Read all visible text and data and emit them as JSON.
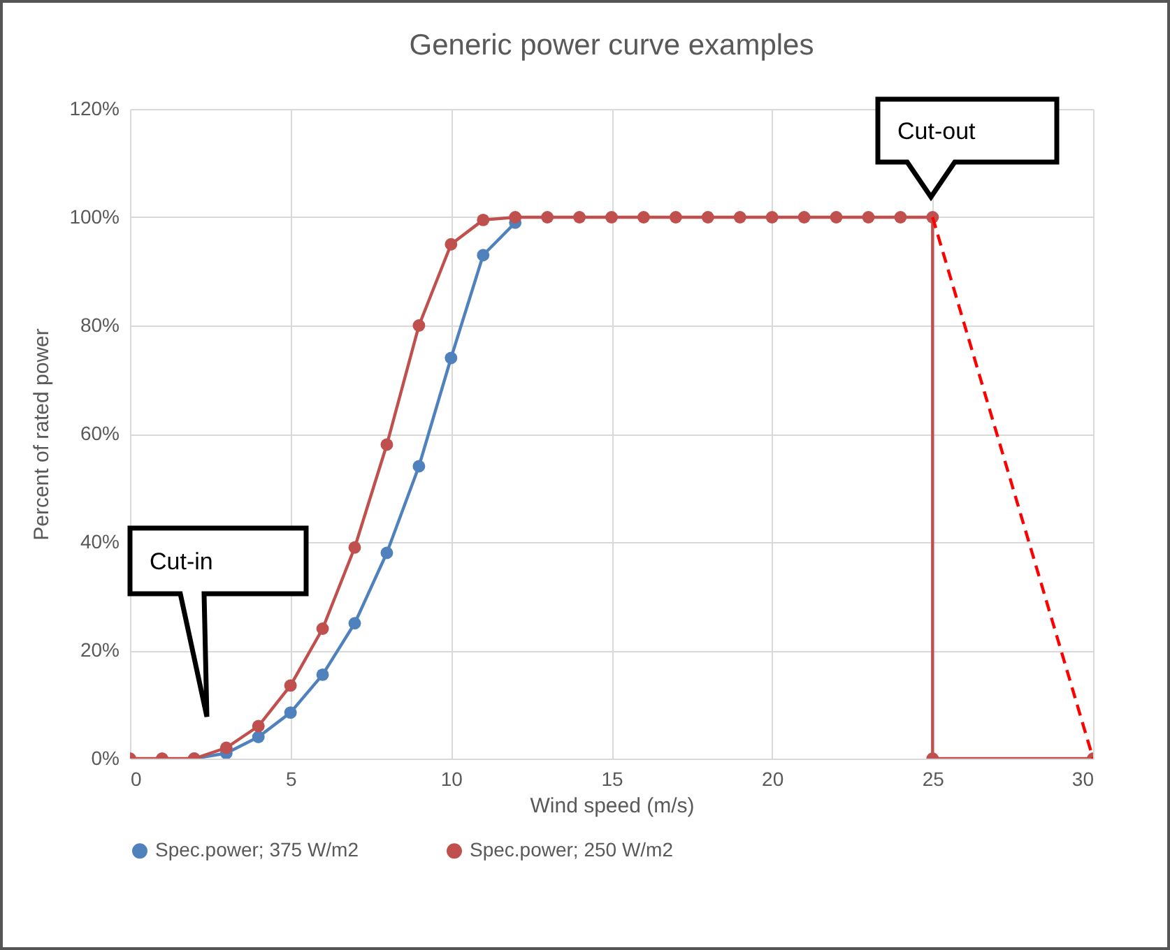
{
  "chart_data": {
    "type": "line",
    "title": "Generic power curve examples",
    "xlabel": "Wind speed (m/s)",
    "ylabel": "Percent of rated power",
    "xlim": [
      0,
      30
    ],
    "xticks": [
      0,
      5,
      10,
      15,
      20,
      25,
      30
    ],
    "ylim": [
      0,
      120
    ],
    "yticks": [
      {
        "value": 0,
        "label": "0%"
      },
      {
        "value": 20,
        "label": "20%"
      },
      {
        "value": 40,
        "label": "40%"
      },
      {
        "value": 60,
        "label": "60%"
      },
      {
        "value": 80,
        "label": "80%"
      },
      {
        "value": 100,
        "label": "100%"
      },
      {
        "value": 120,
        "label": "120%"
      }
    ],
    "grid": true,
    "legend": "bottom",
    "marker": "circle",
    "line_style": "solid",
    "annotations": [
      "Cut-in",
      "Cut-out"
    ],
    "series": [
      {
        "name": "Spec.power; 375 W/m2",
        "color": "#4f81bd",
        "x": [
          2,
          3,
          4,
          5,
          6,
          7,
          8,
          9,
          10,
          11,
          12
        ],
        "values": [
          0,
          1,
          4,
          8.5,
          15.5,
          25,
          38,
          54,
          74,
          93,
          99
        ]
      },
      {
        "name": "Spec.power;  250 W/m2",
        "color": "#c0504d",
        "x": [
          0,
          1,
          2,
          3,
          4,
          5,
          6,
          7,
          8,
          9,
          10,
          11,
          12,
          13,
          14,
          15,
          16,
          17,
          18,
          19,
          20,
          21,
          22,
          23,
          24,
          25,
          25,
          30
        ],
        "values": [
          0,
          0,
          0,
          2,
          6,
          13.5,
          24,
          39,
          58,
          80,
          95,
          99.5,
          100,
          100,
          100,
          100,
          100,
          100,
          100,
          100,
          100,
          100,
          100,
          100,
          100,
          100,
          0,
          0
        ]
      },
      {
        "color": "#ff0000",
        "line_style": "dashed",
        "marker": "none",
        "x": [
          25,
          30
        ],
        "values": [
          100,
          0
        ]
      }
    ]
  }
}
